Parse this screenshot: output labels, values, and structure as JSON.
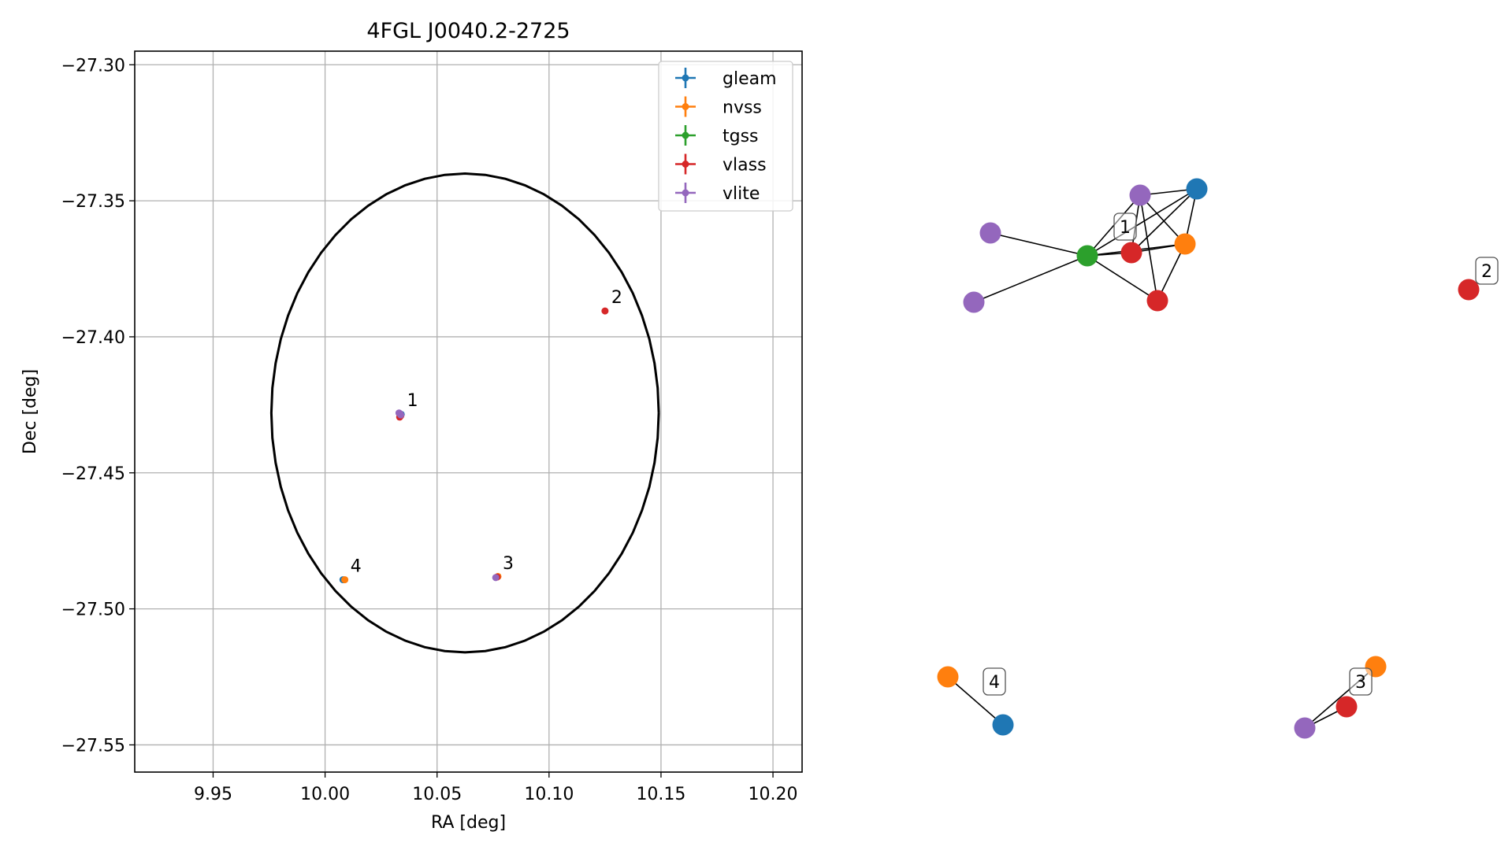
{
  "chart_data": [
    {
      "type": "scatter",
      "title": "4FGL J0040.2-2725",
      "xlabel": "RA [deg]",
      "ylabel": "Dec [deg]",
      "xlim": [
        9.915,
        10.213
      ],
      "ylim": [
        -27.56,
        -27.295
      ],
      "xticks": [
        9.95,
        10.0,
        10.05,
        10.1,
        10.15,
        10.2
      ],
      "xtick_labels": [
        "9.95",
        "10.00",
        "10.05",
        "10.10",
        "10.15",
        "10.20"
      ],
      "yticks": [
        -27.3,
        -27.35,
        -27.4,
        -27.45,
        -27.5,
        -27.55
      ],
      "ytick_labels": [
        "−27.30",
        "−27.35",
        "−27.40",
        "−27.45",
        "−27.50",
        "−27.55"
      ],
      "grid": true,
      "legend_position": "top-right",
      "ellipse": {
        "ra_center": 10.0625,
        "dec_center": -27.428,
        "ra_semi_axis": 0.0865,
        "dec_semi_axis": 0.088
      },
      "series": [
        {
          "name": "gleam",
          "color": "#1f77b4",
          "points": [
            {
              "x": 10.034,
              "y": -27.4285
            },
            {
              "x": 10.008,
              "y": -27.4893
            }
          ]
        },
        {
          "name": "nvss",
          "color": "#ff7f0e",
          "points": [
            {
              "x": 10.0333,
              "y": -27.4283
            },
            {
              "x": 10.0088,
              "y": -27.4893
            },
            {
              "x": 10.0772,
              "y": -27.4881
            }
          ]
        },
        {
          "name": "tgss",
          "color": "#2ca02c",
          "points": [
            {
              "x": 10.0335,
              "y": -27.4285
            }
          ]
        },
        {
          "name": "vlass",
          "color": "#d62728",
          "points": [
            {
              "x": 10.0338,
              "y": -27.429
            },
            {
              "x": 10.0333,
              "y": -27.4295
            },
            {
              "x": 10.125,
              "y": -27.3905
            },
            {
              "x": 10.0768,
              "y": -27.4883
            }
          ]
        },
        {
          "name": "vlite",
          "color": "#9467bd",
          "points": [
            {
              "x": 10.033,
              "y": -27.428
            },
            {
              "x": 10.0335,
              "y": -27.4283
            },
            {
              "x": 10.0338,
              "y": -27.4287
            },
            {
              "x": 10.0762,
              "y": -27.4885
            }
          ]
        }
      ],
      "annotations": [
        {
          "text": "1",
          "x": 10.0338,
          "y": -27.4283
        },
        {
          "text": "2",
          "x": 10.125,
          "y": -27.3905
        },
        {
          "text": "3",
          "x": 10.0765,
          "y": -27.4883
        },
        {
          "text": "4",
          "x": 10.0085,
          "y": -27.4893
        }
      ]
    },
    {
      "type": "network",
      "nodes": [
        {
          "id": "g1",
          "survey": "gleam",
          "color": "#1f77b4"
        },
        {
          "id": "v1",
          "survey": "vlite",
          "color": "#9467bd"
        },
        {
          "id": "v2",
          "survey": "vlite",
          "color": "#9467bd"
        },
        {
          "id": "v3",
          "survey": "vlite",
          "color": "#9467bd"
        },
        {
          "id": "t1",
          "survey": "tgss",
          "color": "#2ca02c"
        },
        {
          "id": "r1",
          "survey": "vlass",
          "color": "#d62728"
        },
        {
          "id": "r2",
          "survey": "vlass",
          "color": "#d62728"
        },
        {
          "id": "n1",
          "survey": "nvss",
          "color": "#ff7f0e"
        },
        {
          "id": "r3",
          "survey": "vlass",
          "color": "#d62728"
        },
        {
          "id": "n4",
          "survey": "nvss",
          "color": "#ff7f0e"
        },
        {
          "id": "g4",
          "survey": "gleam",
          "color": "#1f77b4"
        },
        {
          "id": "n3",
          "survey": "nvss",
          "color": "#ff7f0e"
        },
        {
          "id": "r4",
          "survey": "vlass",
          "color": "#d62728"
        },
        {
          "id": "v4",
          "survey": "vlite",
          "color": "#9467bd"
        }
      ],
      "edges": [
        [
          "v2",
          "t1"
        ],
        [
          "v3",
          "t1"
        ],
        [
          "t1",
          "v1"
        ],
        [
          "t1",
          "g1"
        ],
        [
          "t1",
          "r1"
        ],
        [
          "t1",
          "n1"
        ],
        [
          "t1",
          "r2"
        ],
        [
          "v1",
          "g1"
        ],
        [
          "v1",
          "r1"
        ],
        [
          "v1",
          "n1"
        ],
        [
          "v1",
          "r2"
        ],
        [
          "g1",
          "n1"
        ],
        [
          "g1",
          "r1"
        ],
        [
          "r1",
          "n1"
        ],
        [
          "n1",
          "r2"
        ],
        [
          "n4",
          "g4"
        ],
        [
          "v4",
          "r4"
        ],
        [
          "v4",
          "n3"
        ]
      ],
      "cluster_labels": [
        "1",
        "2",
        "3",
        "4"
      ]
    }
  ]
}
